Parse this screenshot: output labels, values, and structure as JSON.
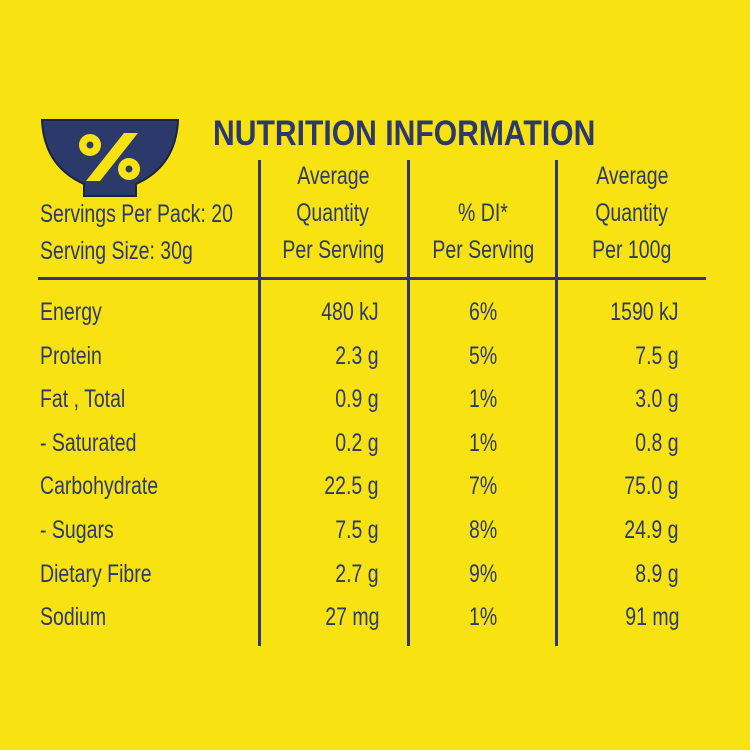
{
  "title": "NUTRITION INFORMATION",
  "icon": "percent-bowl-icon",
  "colors": {
    "background": "#F9E211",
    "ink": "#2B3A6B"
  },
  "servings_per_pack": "Servings Per Pack: 20",
  "serving_size": "Serving Size: 30g",
  "headers": [
    [
      "Average",
      "Quantity",
      "Per Serving"
    ],
    [
      "% DI*",
      "Per Serving"
    ],
    [
      "Average",
      "Quantity",
      "Per 100g"
    ]
  ],
  "rows": [
    {
      "name": "Energy",
      "per_serving": "480 kJ",
      "di": "6%",
      "per_100g": "1590 kJ"
    },
    {
      "name": "Protein",
      "per_serving": "2.3 g",
      "di": "5%",
      "per_100g": "7.5 g"
    },
    {
      "name": "Fat , Total",
      "per_serving": "0.9 g",
      "di": "1%",
      "per_100g": "3.0 g"
    },
    {
      "name": "- Saturated",
      "per_serving": "0.2 g",
      "di": "1%",
      "per_100g": "0.8 g"
    },
    {
      "name": "Carbohydrate",
      "per_serving": "22.5 g",
      "di": "7%",
      "per_100g": "75.0 g"
    },
    {
      "name": "- Sugars",
      "per_serving": "7.5 g",
      "di": "8%",
      "per_100g": "24.9 g"
    },
    {
      "name": "Dietary Fibre",
      "per_serving": "2.7 g",
      "di": "9%",
      "per_100g": "8.9 g"
    },
    {
      "name": "Sodium",
      "per_serving": "27 mg",
      "di": "1%",
      "per_100g": "91 mg"
    }
  ]
}
